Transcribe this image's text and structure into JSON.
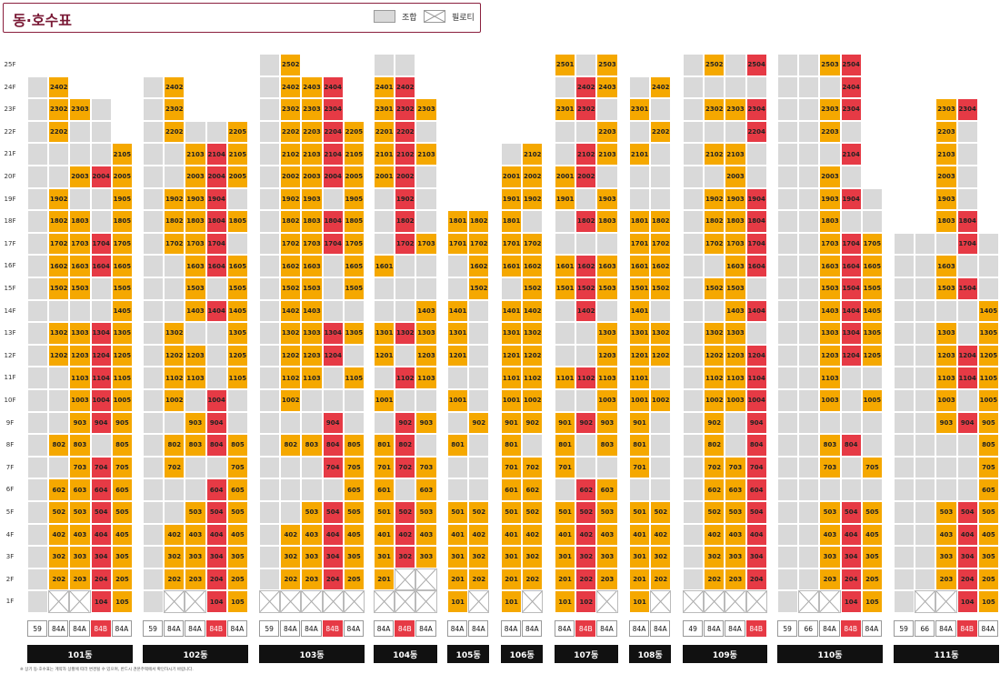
{
  "title": "동·호수표",
  "legend": [
    {
      "label": "조합",
      "kind": "gray"
    },
    {
      "label": "필로티",
      "kind": "piloti"
    }
  ],
  "floor_labels": [
    "25F",
    "24F",
    "23F",
    "22F",
    "21F",
    "20F",
    "19F",
    "18F",
    "17F",
    "16F",
    "15F",
    "14F",
    "13F",
    "12F",
    "11F",
    "10F",
    "9F",
    "8F",
    "7F",
    "6F",
    "5F",
    "4F",
    "3F",
    "2F",
    "1F"
  ],
  "colors": {
    "gray": "#d9d9d9",
    "orange": "#f5a800",
    "red": "#e63a45",
    "title": "#7a1a36",
    "label_bg": "#111111"
  },
  "buildings": [
    {
      "name": "101동",
      "top": 24,
      "types": [
        "59",
        "84A",
        "84A",
        "84B",
        "84A"
      ],
      "type_colors": [
        "w",
        "w",
        "w",
        "r",
        "w"
      ],
      "rows": {
        "24": "g,o2402,e,e,e",
        "23": "g,o2302,o2303,g,e",
        "22": "g,o2202,g,g,e",
        "21": "g,g,g,g,o2105",
        "20": "g,g,o2003,r2004,o2005",
        "19": "g,o1902,g,g,o1905",
        "18": "g,o1802,o1803,g,o1805",
        "17": "g,o1702,o1703,r1704,o1705",
        "16": "g,o1602,o1603,r1604,o1605",
        "15": "g,o1502,o1503,g,o1505",
        "14": "g,g,g,g,o1405",
        "13": "g,o1302,o1303,r1304,o1305",
        "12": "g,o1202,o1203,r1204,o1205",
        "11": "g,g,o1103,r1104,o1105",
        "10": "g,g,o1003,r1004,o1005",
        "9": "g,g,o903,r904,o905",
        "8": "g,o802,o803,g,o805",
        "7": "g,g,o703,r704,o705",
        "6": "g,o602,o603,r604,o605",
        "5": "g,o502,o503,r504,o505",
        "4": "g,o402,o403,r404,o405",
        "3": "g,o302,o303,r304,o305",
        "2": "g,o202,o203,r204,o205",
        "1": "g,p,p,r104,o105"
      }
    },
    {
      "name": "102동",
      "top": 24,
      "types": [
        "59",
        "84A",
        "84A",
        "84B",
        "84A"
      ],
      "type_colors": [
        "w",
        "w",
        "w",
        "r",
        "w"
      ],
      "rows": {
        "24": "g,o2402,e,e,e",
        "23": "g,o2302,e,e,e",
        "22": "g,o2202,g,g,o2205",
        "21": "g,g,o2103,r2104,o2105",
        "20": "g,g,o2003,r2004,o2005",
        "19": "g,o1902,o1903,r1904,g",
        "18": "g,o1802,o1803,r1804,o1805",
        "17": "g,o1702,o1703,r1704,g",
        "16": "g,g,o1603,r1604,o1605",
        "15": "g,g,o1503,g,o1505",
        "14": "g,g,o1403,r1404,o1405",
        "13": "g,o1302,g,g,o1305",
        "12": "g,o1202,o1203,g,o1205",
        "11": "g,o1102,o1103,g,o1105",
        "10": "g,o1002,g,r1004,g",
        "9": "g,g,o903,r904,g",
        "8": "g,o802,o803,r804,o805",
        "7": "g,o702,g,g,o705",
        "6": "g,g,g,r604,o605",
        "5": "g,g,o503,r504,o505",
        "4": "g,o402,o403,r404,o405",
        "3": "g,o302,o303,r304,o305",
        "2": "g,o202,o203,r204,o205",
        "1": "g,p,p,r104,o105"
      }
    },
    {
      "name": "103동",
      "top": 25,
      "types": [
        "59",
        "84A",
        "84A",
        "84B",
        "84A"
      ],
      "type_colors": [
        "w",
        "w",
        "w",
        "r",
        "w"
      ],
      "rows": {
        "25": "g,o2502,e,e,e",
        "24": "g,o2402,o2403,r2404,e",
        "23": "g,o2302,o2303,r2304,e",
        "22": "g,o2202,o2203,r2204,o2205",
        "21": "g,o2102,o2103,r2104,o2105",
        "20": "g,o2002,o2003,r2004,o2005",
        "19": "g,o1902,o1903,g,o1905",
        "18": "g,o1802,o1803,r1804,o1805",
        "17": "g,o1702,o1703,r1704,o1705",
        "16": "g,o1602,o1603,g,o1605",
        "15": "g,o1502,o1503,g,o1505",
        "14": "g,o1402,o1403,g,g",
        "13": "g,o1302,o1303,r1304,o1305",
        "12": "g,o1202,o1203,r1204,g",
        "11": "g,o1102,o1103,g,o1105",
        "10": "g,o1002,g,g,g",
        "9": "g,g,g,r904,g",
        "8": "g,o802,o803,r804,o805",
        "7": "g,g,g,r704,o705",
        "6": "g,g,g,g,o605",
        "5": "g,g,o503,r504,o505",
        "4": "g,o402,o403,r404,o405",
        "3": "g,o302,o303,r304,o305",
        "2": "g,o202,o203,r204,o205",
        "1": "p,p,p,p,p"
      }
    },
    {
      "name": "104동",
      "top": 25,
      "types": [
        "84A",
        "84B",
        "84A"
      ],
      "type_colors": [
        "w",
        "r",
        "w"
      ],
      "rows": {
        "25": "g,g,e",
        "24": "o2401,r2402,e",
        "23": "o2301,r2302,o2303",
        "22": "o2201,r2202,g",
        "21": "o2101,r2102,o2103",
        "20": "o2001,r2002,g",
        "19": "g,r1902,g",
        "18": "g,r1802,g",
        "17": "g,r1702,o1703",
        "16": "o1601,g,g",
        "15": "g,g,g",
        "14": "g,g,o1403",
        "13": "o1301,r1302,o1303",
        "12": "o1201,g,o1203",
        "11": "g,r1102,o1103",
        "10": "o1001,g,g",
        "9": "g,r902,o903",
        "8": "o801,r802,g",
        "7": "o701,r702,o703",
        "6": "o601,g,o603",
        "5": "o501,r502,o503",
        "4": "o401,r402,o403",
        "3": "o301,r302,o303",
        "2": "o201,p,p",
        "1": "p,p,p"
      }
    },
    {
      "name": "105동",
      "top": 18,
      "types": [
        "84A",
        "84A"
      ],
      "type_colors": [
        "w",
        "w"
      ],
      "rows": {
        "18": "o1801,o1802",
        "17": "o1701,o1702",
        "16": "g,o1602",
        "15": "g,o1502",
        "14": "o1401,g",
        "13": "o1301,g",
        "12": "o1201,g",
        "11": "g,g",
        "10": "o1001,g",
        "9": "g,o902",
        "8": "o801,g",
        "7": "g,g",
        "6": "g,g",
        "5": "o501,o502",
        "4": "o401,o402",
        "3": "o301,o302",
        "2": "o201,o202",
        "1": "o101,p"
      }
    },
    {
      "name": "106동",
      "top": 21,
      "types": [
        "84A",
        "84A"
      ],
      "type_colors": [
        "w",
        "w"
      ],
      "rows": {
        "21": "g,o2102",
        "20": "o2001,o2002",
        "19": "o1901,o1902",
        "18": "o1801,g",
        "17": "o1701,o1702",
        "16": "o1601,o1602",
        "15": "g,o1502",
        "14": "o1401,o1402",
        "13": "o1301,o1302",
        "12": "o1201,o1202",
        "11": "o1101,o1102",
        "10": "o1001,o1002",
        "9": "o901,o902",
        "8": "o801,g",
        "7": "o701,o702",
        "6": "o601,o602",
        "5": "o501,o502",
        "4": "o401,o402",
        "3": "o301,o302",
        "2": "o201,o202",
        "1": "o101,p"
      }
    },
    {
      "name": "107동",
      "top": 25,
      "types": [
        "84A",
        "84B",
        "84A"
      ],
      "type_colors": [
        "w",
        "r",
        "w"
      ],
      "rows": {
        "25": "o2501,g,o2503",
        "24": "g,r2402,o2403",
        "23": "o2301,r2302,g",
        "22": "g,g,o2203",
        "21": "g,r2102,o2103",
        "20": "o2001,r2002,g",
        "19": "o1901,g,o1903",
        "18": "g,r1802,o1803",
        "17": "g,g,g",
        "16": "o1601,r1602,o1603",
        "15": "o1501,r1502,o1503",
        "14": "g,r1402,g",
        "13": "g,g,o1303",
        "12": "g,g,o1203",
        "11": "o1101,r1102,o1103",
        "10": "g,g,o1003",
        "9": "o901,r902,o903",
        "8": "o801,g,o803",
        "7": "o701,g,g",
        "6": "g,r602,o603",
        "5": "o501,r502,o503",
        "4": "o401,r402,o403",
        "3": "o301,r302,o303",
        "2": "o201,r202,o203",
        "1": "o101,r102,p"
      }
    },
    {
      "name": "108동",
      "top": 24,
      "types": [
        "84A",
        "84A"
      ],
      "type_colors": [
        "w",
        "w"
      ],
      "rows": {
        "24": "g,o2402",
        "23": "o2301,g",
        "22": "g,o2202",
        "21": "o2101,g",
        "20": "g,g",
        "19": "g,g",
        "18": "o1801,o1802",
        "17": "o1701,o1702",
        "16": "o1601,o1602",
        "15": "o1501,o1502",
        "14": "o1401,g",
        "13": "o1301,o1302",
        "12": "o1201,o1202",
        "11": "o1101,g",
        "10": "o1001,o1002",
        "9": "o901,g",
        "8": "o801,g",
        "7": "o701,g",
        "6": "g,g",
        "5": "o501,o502",
        "4": "o401,o402",
        "3": "o301,o302",
        "2": "o201,o202",
        "1": "o101,p"
      }
    },
    {
      "name": "109동",
      "top": 25,
      "types": [
        "49",
        "84A",
        "84A",
        "84B"
      ],
      "type_colors": [
        "w",
        "w",
        "w",
        "r"
      ],
      "rows": {
        "25": "g,o2502,g,r2504",
        "24": "g,g,g,g",
        "23": "g,o2302,o2303,r2304",
        "22": "g,g,g,r2204",
        "21": "g,o2102,o2103,g",
        "20": "g,g,o2003,g",
        "19": "g,o1902,o1903,r1904",
        "18": "g,o1802,o1803,r1804",
        "17": "g,o1702,o1703,r1704",
        "16": "g,g,o1603,r1604",
        "15": "g,o1502,o1503,g",
        "14": "g,g,o1403,r1404",
        "13": "g,o1302,o1303,g",
        "12": "g,o1202,o1203,r1204",
        "11": "g,o1102,o1103,r1104",
        "10": "g,o1002,o1003,r1004",
        "9": "g,o902,g,r904",
        "8": "g,o802,g,r804",
        "7": "g,o702,o703,r704",
        "6": "g,o602,o603,r604",
        "5": "g,o502,o503,r504",
        "4": "g,o402,o403,r404",
        "3": "g,o302,o303,r304",
        "2": "g,o202,o203,r204",
        "1": "p,p,p,p"
      }
    },
    {
      "name": "110동",
      "top": 25,
      "types": [
        "59",
        "66",
        "84A",
        "84B",
        "84A"
      ],
      "type_colors": [
        "w",
        "w",
        "w",
        "r",
        "w"
      ],
      "rows": {
        "25": "g,g,o2503,r2504,e",
        "24": "g,g,g,r2404,e",
        "23": "g,g,o2303,r2304,e",
        "22": "g,g,o2203,g,e",
        "21": "g,g,g,r2104,e",
        "20": "g,g,o2003,g,e",
        "19": "g,g,o1903,r1904,g",
        "18": "g,g,o1803,g,g",
        "17": "g,g,o1703,r1704,o1705",
        "16": "g,g,o1603,r1604,o1605",
        "15": "g,g,o1503,r1504,o1505",
        "14": "g,g,o1403,r1404,o1405",
        "13": "g,g,o1303,r1304,o1305",
        "12": "g,g,o1203,r1204,o1205",
        "11": "g,g,o1103,g,g",
        "10": "g,g,o1003,g,o1005",
        "9": "g,g,g,g,g",
        "8": "g,g,o803,r804,g",
        "7": "g,g,o703,g,o705",
        "6": "g,g,g,g,g",
        "5": "g,g,o503,r504,o505",
        "4": "g,g,o403,r404,o405",
        "3": "g,g,o303,r304,o305",
        "2": "g,g,o203,r204,o205",
        "1": "g,p,p,r104,o105"
      }
    },
    {
      "name": "111동",
      "top": 23,
      "types": [
        "59",
        "66",
        "84A",
        "84B",
        "84A"
      ],
      "type_colors": [
        "w",
        "w",
        "w",
        "r",
        "w"
      ],
      "rows": {
        "23": "e,e,o2303,r2304,e",
        "22": "e,e,o2203,g,e",
        "21": "e,e,o2103,g,e",
        "20": "e,e,o2003,g,e",
        "19": "e,e,o1903,g,e",
        "18": "e,e,o1803,r1804,e",
        "17": "g,g,g,r1704,g",
        "16": "g,g,o1603,g,g",
        "15": "g,g,o1503,r1504,g",
        "14": "g,g,g,g,o1405",
        "13": "g,g,o1303,g,o1305",
        "12": "g,g,o1203,r1204,o1205",
        "11": "g,g,o1103,r1104,o1105",
        "10": "g,g,o1003,g,o1005",
        "9": "g,g,o903,r904,o905",
        "8": "g,g,g,g,o805",
        "7": "g,g,g,g,o705",
        "6": "g,g,g,g,o605",
        "5": "g,g,o503,r504,o505",
        "4": "g,g,o403,r404,o405",
        "3": "g,g,o303,r304,o305",
        "2": "g,g,o203,r204,o205",
        "1": "g,p,p,r104,o105"
      }
    }
  ],
  "footnote": "※ 상기 동·호수표는 계약자 상황에 따라 변경될 수 있으며, 반드시 견본주택에서 확인하시기 바랍니다."
}
